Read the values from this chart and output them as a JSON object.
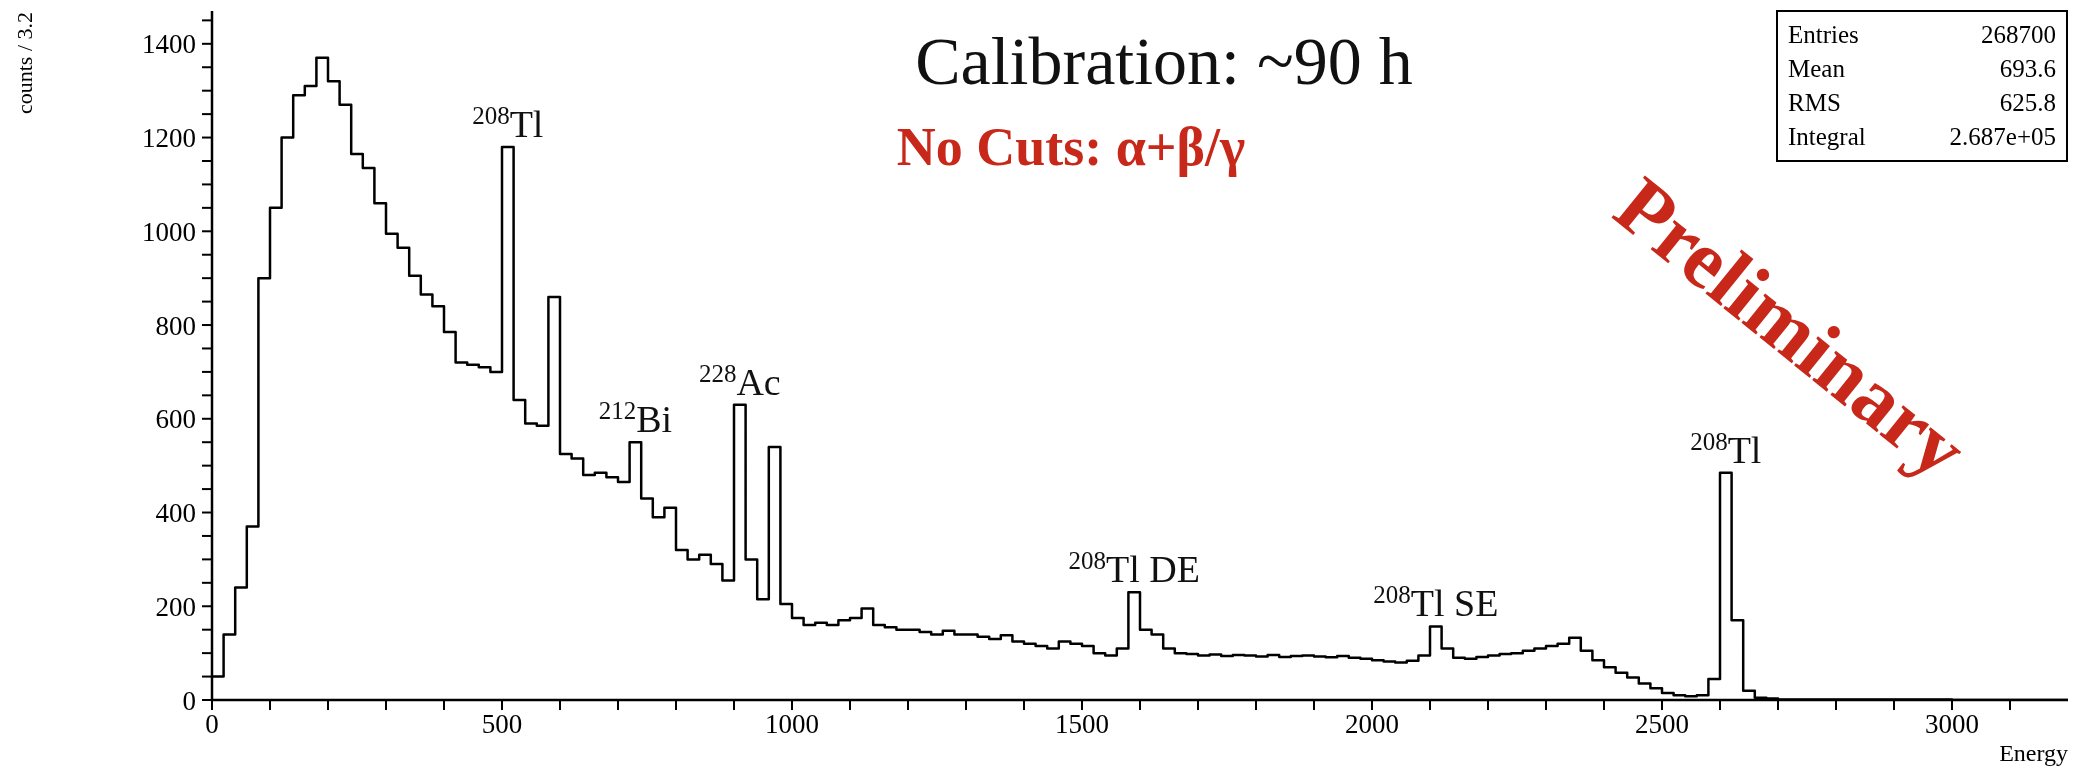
{
  "chart_data": {
    "type": "histogram",
    "title": "Calibration: ~90 h",
    "subtitle": "No Cuts: α+β/γ",
    "xlabel": "Energy",
    "ylabel": "counts / 3.2",
    "annotations": [
      "Entries 268700",
      "Mean 693.6",
      "RMS 625.8",
      "Integral 2.687e+05",
      "Preliminary",
      {
        "text": "$^{208}$Tl",
        "x": 510,
        "y": 1180
      },
      {
        "text": "$^{212}$Bi",
        "x": 730,
        "y": 550
      },
      {
        "text": "$^{228}$Ac",
        "x": 910,
        "y": 630
      },
      {
        "text": "$^{208}$Tl DE",
        "x": 1590,
        "y": 230
      },
      {
        "text": "$^{208}$Tl SE",
        "x": 2110,
        "y": 157
      },
      {
        "text": "$^{208}$Tl",
        "x": 2610,
        "y": 485
      }
    ],
    "color": "#000000",
    "bins": [
      0,
      20,
      40,
      60,
      80,
      100,
      120,
      140,
      160,
      180,
      200,
      220,
      240,
      260,
      280,
      300,
      320,
      340,
      360,
      380,
      400,
      420,
      440,
      460,
      480,
      500,
      520,
      540,
      560,
      580,
      600,
      620,
      640,
      660,
      680,
      700,
      720,
      740,
      760,
      780,
      800,
      820,
      840,
      860,
      880,
      900,
      920,
      940,
      960,
      980,
      1000,
      1020,
      1040,
      1060,
      1080,
      1100,
      1120,
      1140,
      1160,
      1180,
      1200,
      1220,
      1240,
      1260,
      1280,
      1300,
      1320,
      1340,
      1360,
      1380,
      1400,
      1420,
      1440,
      1460,
      1480,
      1500,
      1520,
      1540,
      1560,
      1580,
      1600,
      1620,
      1640,
      1660,
      1680,
      1700,
      1720,
      1740,
      1760,
      1780,
      1800,
      1820,
      1840,
      1860,
      1880,
      1900,
      1920,
      1940,
      1960,
      1980,
      2000,
      2020,
      2040,
      2060,
      2080,
      2100,
      2120,
      2140,
      2160,
      2180,
      2200,
      2220,
      2240,
      2260,
      2280,
      2300,
      2320,
      2340,
      2360,
      2380,
      2400,
      2420,
      2440,
      2460,
      2480,
      2500,
      2520,
      2540,
      2560,
      2580,
      2600,
      2620,
      2640,
      2660,
      2680,
      2700,
      2720,
      2740,
      2760,
      2780,
      2800,
      2820,
      2840,
      2860,
      2880,
      2900,
      2920,
      2940,
      2960,
      2980,
      3000,
      3020,
      3040,
      3060,
      3080,
      3100,
      3120,
      3140,
      3160,
      3180,
      3200
    ],
    "values": [
      50,
      140,
      240,
      370,
      900,
      1050,
      1200,
      1290,
      1310,
      1370,
      1320,
      1270,
      1165,
      1135,
      1060,
      995,
      965,
      905,
      865,
      840,
      785,
      720,
      715,
      710,
      700,
      1180,
      640,
      590,
      585,
      860,
      525,
      515,
      480,
      485,
      475,
      465,
      550,
      430,
      390,
      410,
      320,
      300,
      310,
      290,
      255,
      630,
      300,
      215,
      540,
      205,
      175,
      160,
      165,
      160,
      170,
      175,
      195,
      160,
      155,
      150,
      150,
      145,
      140,
      148,
      140,
      140,
      135,
      130,
      138,
      125,
      120,
      115,
      110,
      125,
      120,
      115,
      100,
      95,
      110,
      230,
      150,
      140,
      110,
      100,
      98,
      95,
      97,
      94,
      96,
      95,
      93,
      96,
      92,
      94,
      95,
      93,
      91,
      94,
      90,
      88,
      85,
      82,
      80,
      84,
      95,
      157,
      110,
      90,
      88,
      92,
      95,
      98,
      100,
      105,
      110,
      115,
      120,
      133,
      105,
      85,
      70,
      58,
      48,
      35,
      25,
      15,
      10,
      8,
      10,
      45,
      485,
      170,
      20,
      5,
      3,
      1,
      1,
      1,
      1,
      1,
      1,
      1,
      1,
      1,
      1,
      1,
      1,
      1,
      1,
      1,
      0,
      0,
      0,
      0,
      0,
      0,
      0,
      0,
      0,
      0
    ],
    "xlim": [
      0,
      3200
    ],
    "xticks": [
      0,
      {
        "value": 100,
        "label": null
      },
      {
        "value": 200,
        "label": null
      },
      {
        "value": 300,
        "label": null
      },
      {
        "value": 400,
        "label": null
      },
      500,
      {
        "value": 600,
        "label": null
      },
      {
        "value": 700,
        "label": null
      },
      {
        "value": 800,
        "label": null
      },
      {
        "value": 900,
        "label": null
      },
      1000,
      {
        "value": 1100,
        "label": null
      },
      {
        "value": 1200,
        "label": null
      },
      {
        "value": 1300,
        "label": null
      },
      {
        "value": 1400,
        "label": null
      },
      1500,
      {
        "value": 1600,
        "label": null
      },
      {
        "value": 1700,
        "label": null
      },
      {
        "value": 1800,
        "label": null
      },
      {
        "value": 1900,
        "label": null
      },
      2000,
      {
        "value": 2100,
        "label": null
      },
      {
        "value": 2200,
        "label": null
      },
      {
        "value": 2300,
        "label": null
      },
      {
        "value": 2400,
        "label": null
      },
      2500,
      {
        "value": 2600,
        "label": null
      },
      {
        "value": 2700,
        "label": null
      },
      {
        "value": 2800,
        "label": null
      },
      {
        "value": 2900,
        "label": null
      },
      3000,
      {
        "value": 3100,
        "label": null
      }
    ],
    "ylim": [
      0,
      1470
    ],
    "yticks": [
      0,
      {
        "value": 50,
        "label": null
      },
      {
        "value": 100,
        "label": null
      },
      {
        "value": 150,
        "label": null
      },
      200,
      {
        "value": 250,
        "label": null
      },
      {
        "value": 300,
        "label": null
      },
      {
        "value": 350,
        "label": null
      },
      400,
      {
        "value": 450,
        "label": null
      },
      {
        "value": 500,
        "label": null
      },
      {
        "value": 550,
        "label": null
      },
      600,
      {
        "value": 650,
        "label": null
      },
      {
        "value": 700,
        "label": null
      },
      {
        "value": 750,
        "label": null
      },
      800,
      {
        "value": 850,
        "label": null
      },
      {
        "value": 900,
        "label": null
      },
      {
        "value": 950,
        "label": null
      },
      1000,
      {
        "value": 1050,
        "label": null
      },
      {
        "value": 1100,
        "label": null
      },
      {
        "value": 1150,
        "label": null
      },
      1200,
      {
        "value": 1250,
        "label": null
      },
      {
        "value": 1300,
        "label": null
      },
      {
        "value": 1350,
        "label": null
      },
      1400,
      {
        "value": 1450,
        "label": null
      }
    ]
  }
}
